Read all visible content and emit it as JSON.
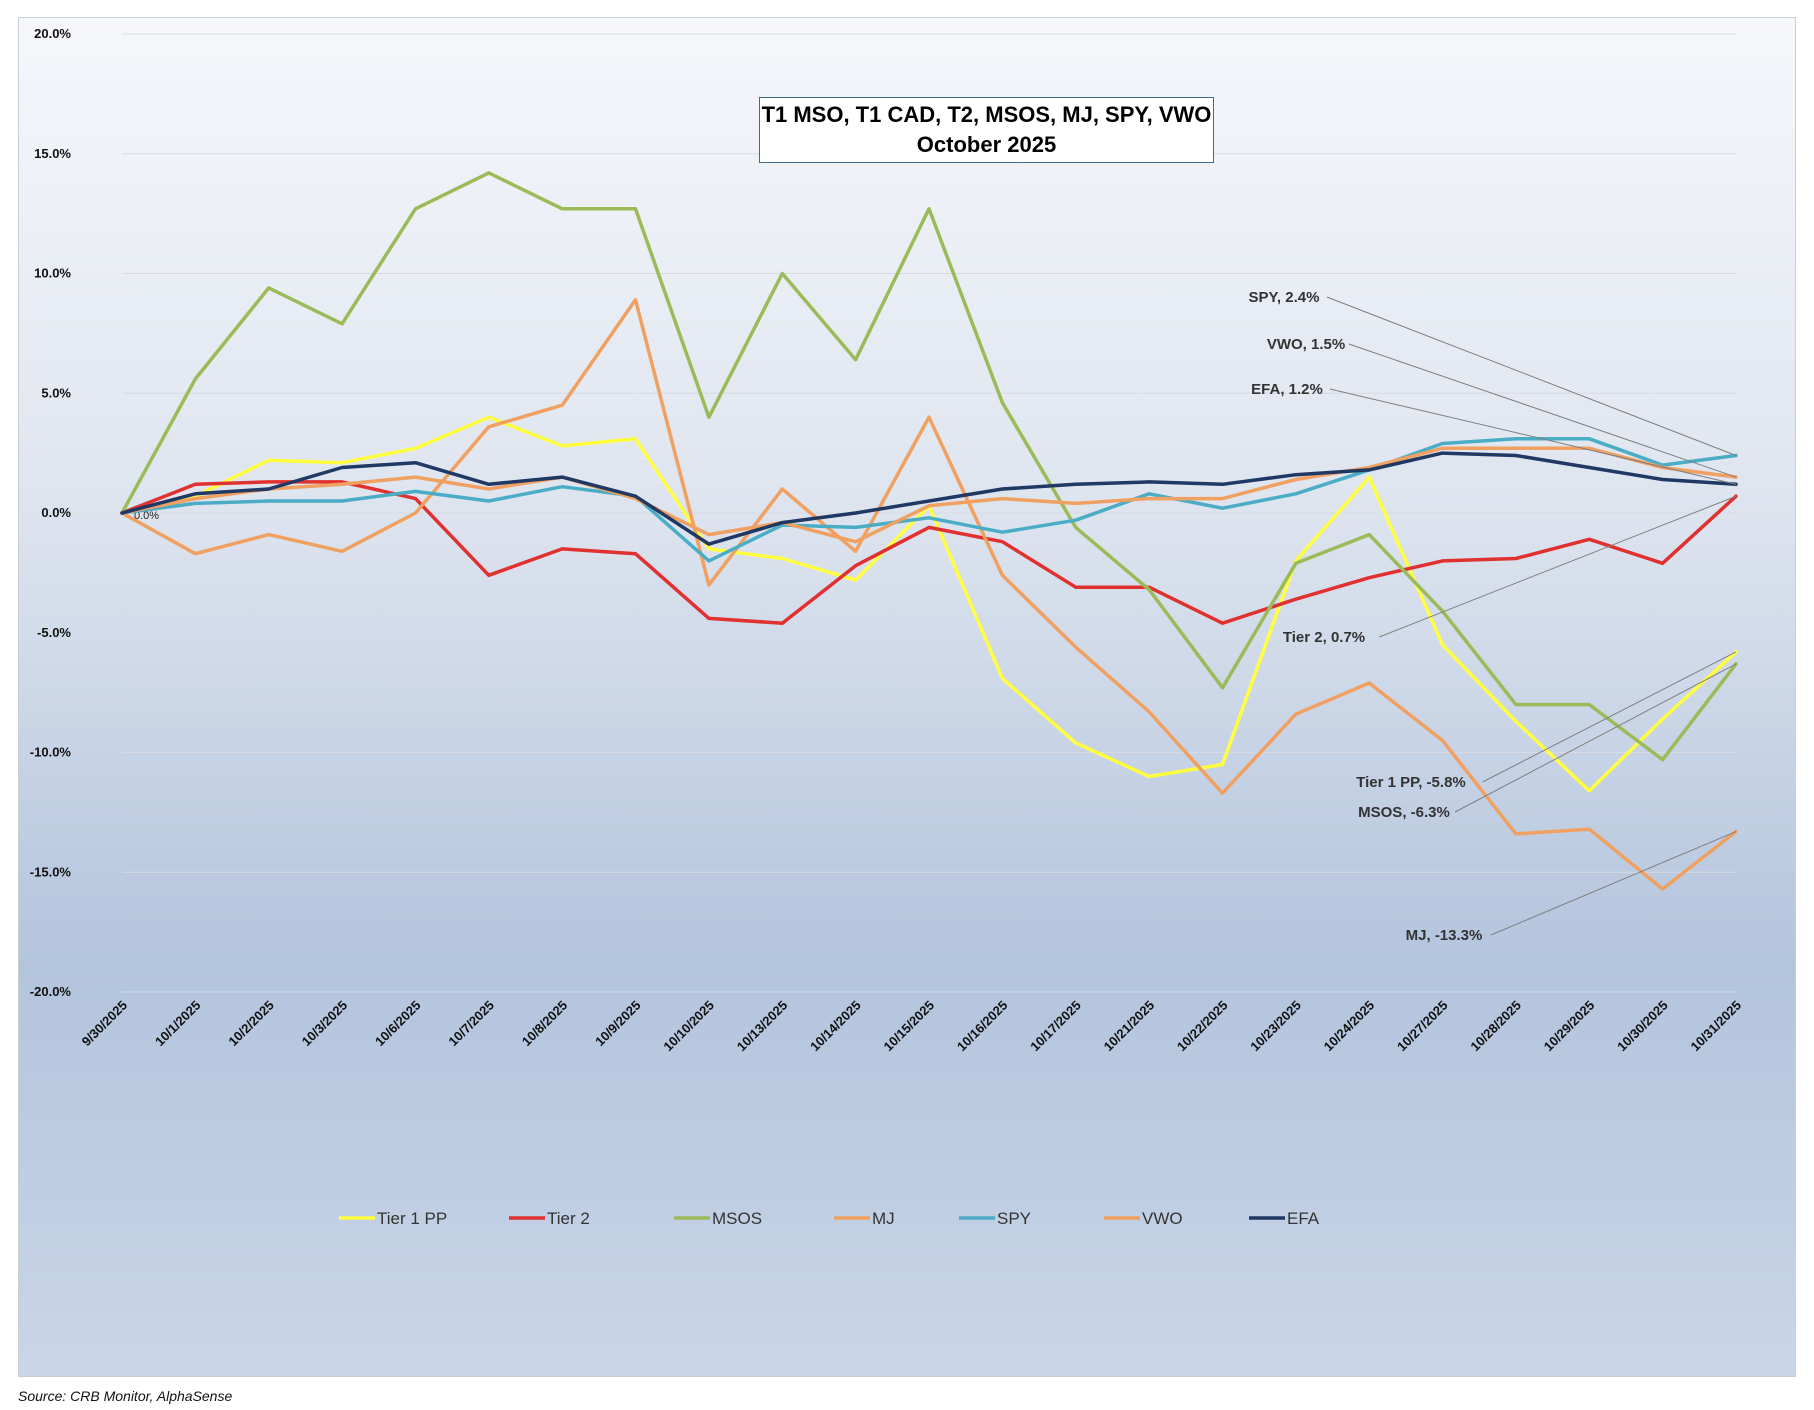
{
  "chart_data": {
    "type": "line",
    "title": [
      "T1 MSO, T1 CAD, T2, MSOS, MJ, SPY, VWO",
      "October  2025"
    ],
    "x": [
      "9/30/2025",
      "10/1/2025",
      "10/2/2025",
      "10/3/2025",
      "10/6/2025",
      "10/7/2025",
      "10/8/2025",
      "10/9/2025",
      "10/10/2025",
      "10/13/2025",
      "10/14/2025",
      "10/15/2025",
      "10/16/2025",
      "10/17/2025",
      "10/21/2025",
      "10/22/2025",
      "10/23/2025",
      "10/24/2025",
      "10/27/2025",
      "10/28/2025",
      "10/29/2025",
      "10/30/2025",
      "10/31/2025"
    ],
    "ylim": [
      -20,
      20
    ],
    "yticks": [
      "20.0%",
      "15.0%",
      "10.0%",
      "5.0%",
      "0.0%",
      "-5.0%",
      "-10.0%",
      "-15.0%",
      "-20.0%"
    ],
    "grid": true,
    "legend": "bottom",
    "series": [
      {
        "name": "Tier 1 PP",
        "color": "#ffff40",
        "values": [
          0,
          0.7,
          2.2,
          2.1,
          2.7,
          4.0,
          2.8,
          3.1,
          -1.5,
          -1.9,
          -2.8,
          0.3,
          -6.9,
          -9.6,
          -11.0,
          -10.5,
          -2.0,
          1.5,
          -5.5,
          -8.7,
          -11.6,
          -8.6,
          -5.8
        ]
      },
      {
        "name": "Tier 2",
        "color": "#e03030",
        "values": [
          0,
          1.2,
          1.3,
          1.3,
          0.6,
          -2.6,
          -1.5,
          -1.7,
          -4.4,
          -4.6,
          -2.2,
          -0.6,
          -1.2,
          -3.1,
          -3.1,
          -4.6,
          -3.6,
          -2.7,
          -2.0,
          -1.9,
          -1.1,
          -2.1,
          0.7
        ]
      },
      {
        "name": "MSOS",
        "color": "#9bbb59",
        "values": [
          0,
          5.6,
          9.4,
          7.9,
          12.7,
          14.2,
          12.7,
          12.7,
          4.0,
          10.0,
          6.4,
          12.7,
          4.6,
          -0.6,
          -3.2,
          -7.3,
          -2.1,
          -0.9,
          -4.1,
          -8.0,
          -8.0,
          -10.3,
          -6.3
        ]
      },
      {
        "name": "MJ",
        "color": "#f0a060",
        "values": [
          0,
          -1.7,
          -0.9,
          -1.6,
          0.0,
          3.6,
          4.5,
          8.9,
          -3.0,
          1.0,
          -1.6,
          4.0,
          -2.6,
          -5.6,
          -8.3,
          -11.7,
          -8.4,
          -7.1,
          -9.5,
          -13.4,
          -13.2,
          -15.7,
          -13.3
        ]
      },
      {
        "name": "SPY",
        "color": "#4bacc6",
        "values": [
          0,
          0.4,
          0.5,
          0.5,
          0.9,
          0.5,
          1.1,
          0.7,
          -2.0,
          -0.5,
          -0.6,
          -0.2,
          -0.8,
          -0.3,
          0.8,
          0.2,
          0.8,
          1.8,
          2.9,
          3.1,
          3.1,
          2.0,
          2.4
        ]
      },
      {
        "name": "VWO",
        "color": "#f0a060",
        "values": [
          0,
          0.6,
          1.0,
          1.2,
          1.5,
          1.0,
          1.5,
          0.6,
          -0.9,
          -0.4,
          -1.2,
          0.3,
          0.6,
          0.4,
          0.6,
          0.6,
          1.4,
          1.9,
          2.7,
          2.7,
          2.7,
          1.9,
          1.5
        ]
      },
      {
        "name": "EFA",
        "color": "#1f3864",
        "values": [
          0,
          0.8,
          1.0,
          1.9,
          2.1,
          1.2,
          1.5,
          0.7,
          -1.3,
          -0.4,
          0.0,
          0.5,
          1.0,
          1.2,
          1.3,
          1.2,
          1.6,
          1.8,
          2.5,
          2.4,
          1.9,
          1.4,
          1.2
        ]
      }
    ],
    "annotations": [
      {
        "series": "SPY",
        "text": "SPY, 2.4%"
      },
      {
        "series": "VWO",
        "text": "VWO, 1.5%"
      },
      {
        "series": "EFA",
        "text": "EFA, 1.2%"
      },
      {
        "series": "Tier 2",
        "text": "Tier 2, 0.7%"
      },
      {
        "series": "Tier 1 PP",
        "text": "Tier 1 PP, -5.8%"
      },
      {
        "series": "MSOS",
        "text": "MSOS, -6.3%"
      },
      {
        "series": "MJ",
        "text": "MJ, -13.3%"
      }
    ],
    "zero_label": "0.0%"
  },
  "source_note": "Source: CRB Monitor, AlphaSense"
}
